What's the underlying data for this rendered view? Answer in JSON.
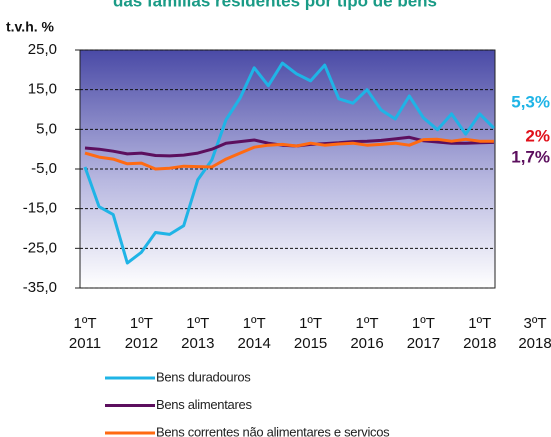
{
  "chart_data": {
    "type": "line",
    "title": "das famílias residentes por tipo de bens",
    "y_axis_label": "t.v.h. %",
    "categories": [
      "1ºT 2011",
      null,
      null,
      null,
      "1ºT 2012",
      null,
      null,
      null,
      "1ºT 2013",
      null,
      null,
      null,
      "1ºT 2014",
      null,
      null,
      null,
      "1ºT 2015",
      null,
      null,
      null,
      "1ºT 2016",
      null,
      null,
      null,
      "1ºT 2017",
      null,
      null,
      null,
      "1ºT 2018",
      null
    ],
    "period_label": "3ºT 2018",
    "ylim": [
      -35,
      25
    ],
    "yticks": [
      {
        "value": -35,
        "label": "-35,0"
      },
      {
        "value": -25,
        "label": "-25,0"
      },
      {
        "value": -15,
        "label": "-15,0"
      },
      {
        "value": -5,
        "label": "-5,0"
      },
      {
        "value": 5,
        "label": "5,0"
      },
      {
        "value": 15,
        "label": "15,0"
      },
      {
        "value": 25,
        "label": "25,0"
      }
    ],
    "grid": true,
    "series": [
      {
        "name": "Bens duradouros",
        "color": "#1fb4e6",
        "end_label": "5,3%",
        "values": [
          -4.5,
          -14.5,
          -16.5,
          -28.7,
          -26,
          -21,
          -21.5,
          -19.3,
          -7.7,
          -2.7,
          7.4,
          12.9,
          20.5,
          16,
          21.7,
          19,
          17.2,
          21.2,
          12.7,
          11.6,
          15,
          9.9,
          7.6,
          13.4,
          7.9,
          4.9,
          8.9,
          3.8,
          8.9,
          5.3
        ]
      },
      {
        "name": "Bens alimentares",
        "color": "#5c0f5e",
        "end_label": "1,7%",
        "values": [
          0.3,
          0,
          -0.5,
          -1.2,
          -1,
          -1.6,
          -1.7,
          -1.5,
          -1,
          0,
          1.5,
          1.9,
          2.3,
          1.5,
          1,
          0.8,
          1.2,
          1.4,
          1.6,
          1.9,
          2.0,
          2.2,
          2.6,
          3.0,
          2.1,
          1.8,
          1.5,
          1.5,
          1.6,
          1.7
        ]
      },
      {
        "name": "Bens correntes não alimentares e servicos",
        "color": "#ff6a12",
        "end_label": "2%",
        "end_label_color": "#e0101a",
        "values": [
          -1,
          -2,
          -2.5,
          -3.7,
          -3.5,
          -5,
          -4.8,
          -4.3,
          -4.4,
          -4.5,
          -2.5,
          -1,
          0.5,
          1,
          1.2,
          0.8,
          1.5,
          1.0,
          1.3,
          1.5,
          1,
          1.2,
          1.5,
          1.0,
          2.4,
          2.5,
          2.0,
          2.5,
          2.0,
          2.0
        ]
      }
    ]
  }
}
